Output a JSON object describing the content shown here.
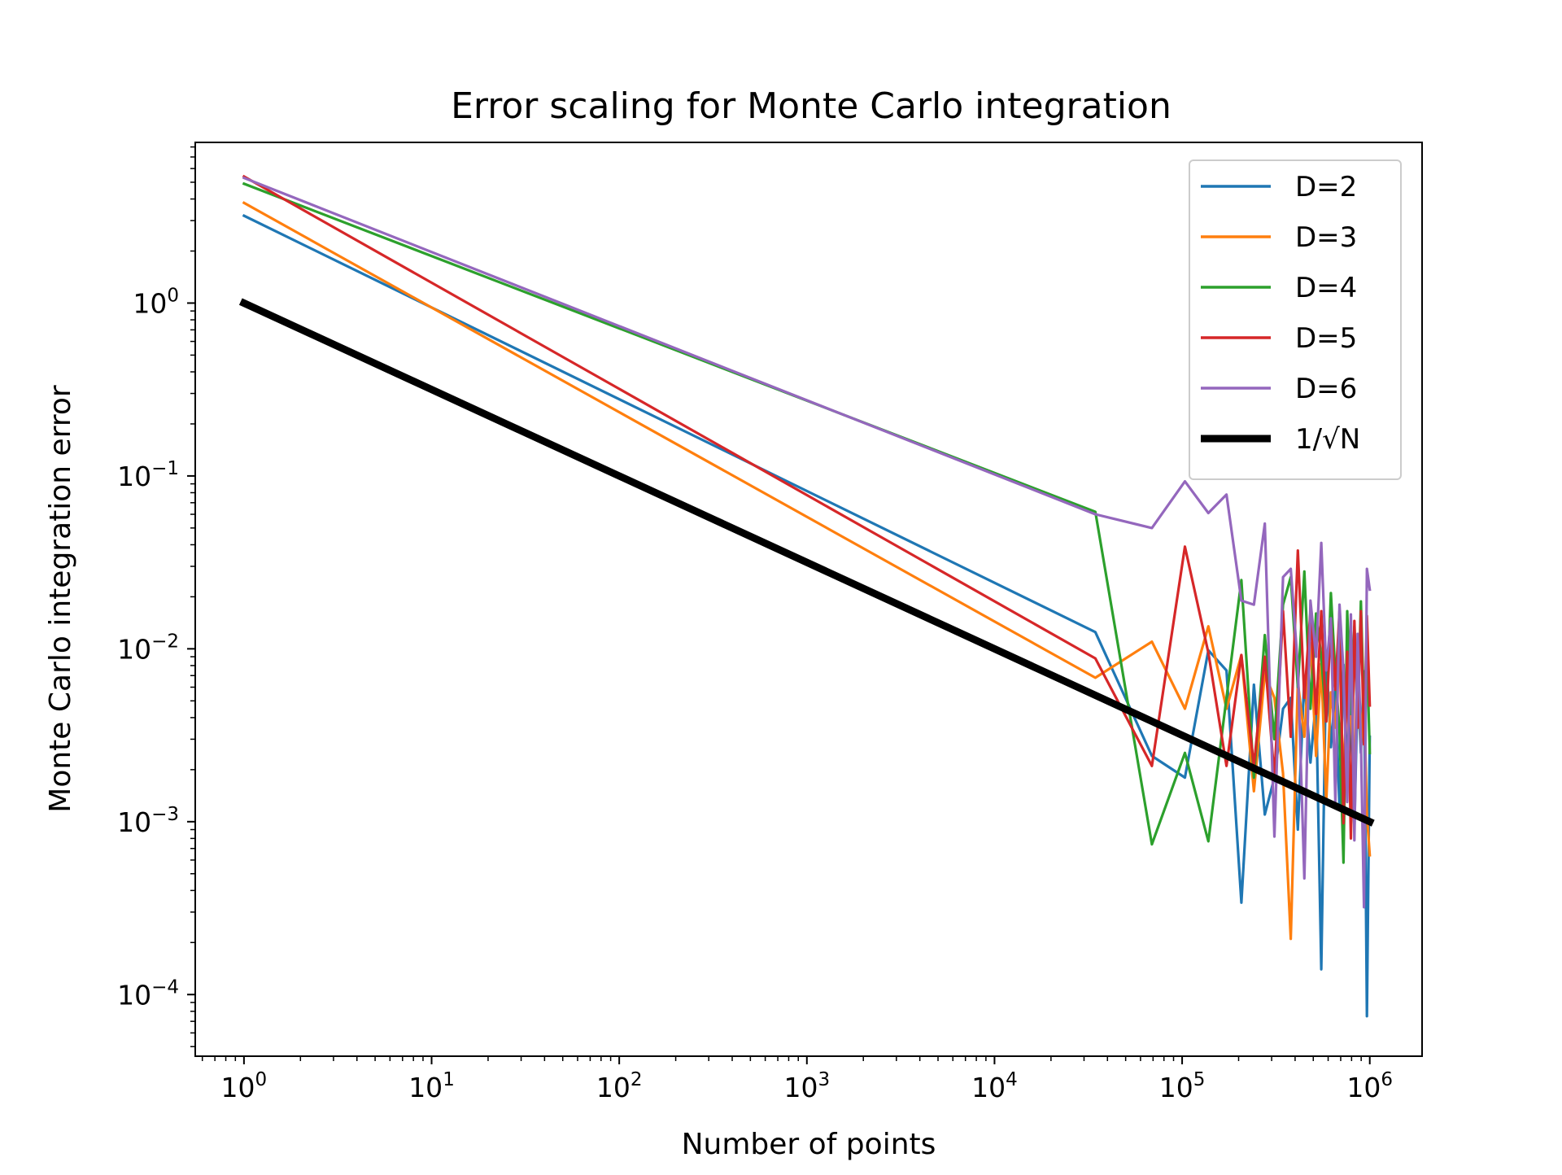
{
  "chart_data": {
    "type": "line",
    "title": "Error scaling for Monte Carlo integration",
    "xlabel": "Number of points",
    "ylabel": "Monte Carlo integration error",
    "xscale": "log",
    "yscale": "log",
    "xlim": [
      0.55,
      1900000
    ],
    "ylim": [
      4.4e-05,
      8.5
    ],
    "grid": false,
    "legend_position": "top-right",
    "x_ticks": [
      {
        "value": 1,
        "base": "10",
        "exp": "0"
      },
      {
        "value": 10,
        "base": "10",
        "exp": "1"
      },
      {
        "value": 100,
        "base": "10",
        "exp": "2"
      },
      {
        "value": 1000,
        "base": "10",
        "exp": "3"
      },
      {
        "value": 10000,
        "base": "10",
        "exp": "4"
      },
      {
        "value": 100000,
        "base": "10",
        "exp": "5"
      },
      {
        "value": 1000000,
        "base": "10",
        "exp": "6"
      }
    ],
    "y_ticks": [
      {
        "value": 1,
        "base": "10",
        "exp": "0"
      },
      {
        "value": 0.1,
        "base": "10",
        "exp": "−1"
      },
      {
        "value": 0.01,
        "base": "10",
        "exp": "−2"
      },
      {
        "value": 0.001,
        "base": "10",
        "exp": "−3"
      },
      {
        "value": 0.0001,
        "base": "10",
        "exp": "−4"
      }
    ],
    "x": [
      1,
      34483,
      68966,
      103449,
      137932,
      172415,
      206898,
      241381,
      275864,
      310347,
      344830,
      379313,
      413796,
      448279,
      482762,
      517245,
      551728,
      586211,
      620694,
      655177,
      689660,
      724143,
      758626,
      793109,
      827592,
      862075,
      896558,
      931041,
      965524,
      1000000
    ],
    "series": [
      {
        "name": "D=2",
        "color": "#1f77b4",
        "values": [
          3.2,
          0.0125,
          0.0024,
          0.0018,
          0.0098,
          0.0075,
          0.00034,
          0.0062,
          0.0011,
          0.0018,
          0.0045,
          0.0052,
          0.0009,
          0.0068,
          0.0022,
          0.0051,
          0.00014,
          0.0093,
          0.0027,
          0.0058,
          0.0012,
          0.0081,
          0.0019,
          0.0038,
          0.0009,
          0.0061,
          0.0025,
          0.0074,
          7.5e-05,
          0.0031
        ]
      },
      {
        "name": "D=3",
        "color": "#ff7f0e",
        "values": [
          3.8,
          0.0068,
          0.011,
          0.0045,
          0.0135,
          0.0045,
          0.0092,
          0.0015,
          0.0072,
          0.0052,
          0.0019,
          0.00021,
          0.0064,
          0.0031,
          0.0108,
          0.0024,
          0.0082,
          0.0013,
          0.0056,
          0.0035,
          0.0098,
          0.0016,
          0.0071,
          0.0042,
          0.0019,
          0.0088,
          0.0028,
          0.0054,
          0.0011,
          0.00064
        ]
      },
      {
        "name": "D=4",
        "color": "#2ca02c",
        "values": [
          4.9,
          0.062,
          0.00074,
          0.0025,
          0.00077,
          0.0052,
          0.025,
          0.0018,
          0.012,
          0.003,
          0.018,
          0.026,
          0.006,
          0.028,
          0.0045,
          0.016,
          0.009,
          0.0038,
          0.021,
          0.0072,
          0.0034,
          0.00058,
          0.0165,
          0.0042,
          0.0135,
          0.0035,
          0.0188,
          0.0042,
          0.0098,
          0.0025
        ]
      },
      {
        "name": "D=5",
        "color": "#d62728",
        "values": [
          5.4,
          0.0088,
          0.0021,
          0.039,
          0.0095,
          0.0021,
          0.0092,
          0.0021,
          0.009,
          0.0018,
          0.0165,
          0.0031,
          0.037,
          0.0052,
          0.0165,
          0.0042,
          0.0165,
          0.0038,
          0.0145,
          0.0058,
          0.0165,
          0.00098,
          0.0096,
          0.0008,
          0.0145,
          0.0035,
          0.0165,
          0.0028,
          0.0155,
          0.0047
        ]
      },
      {
        "name": "D=6",
        "color": "#9467bd",
        "values": [
          5.3,
          0.06,
          0.05,
          0.093,
          0.061,
          0.078,
          0.019,
          0.018,
          0.053,
          0.00082,
          0.026,
          0.029,
          0.0079,
          0.00047,
          0.019,
          0.009,
          0.041,
          0.0075,
          0.015,
          0.0013,
          0.018,
          0.0075,
          0.0013,
          0.0158,
          0.00078,
          0.0122,
          0.003,
          0.00032,
          0.029,
          0.022
        ]
      },
      {
        "name": "1/√N",
        "color": "#000000",
        "reference": "1/sqrt(N)"
      }
    ]
  }
}
